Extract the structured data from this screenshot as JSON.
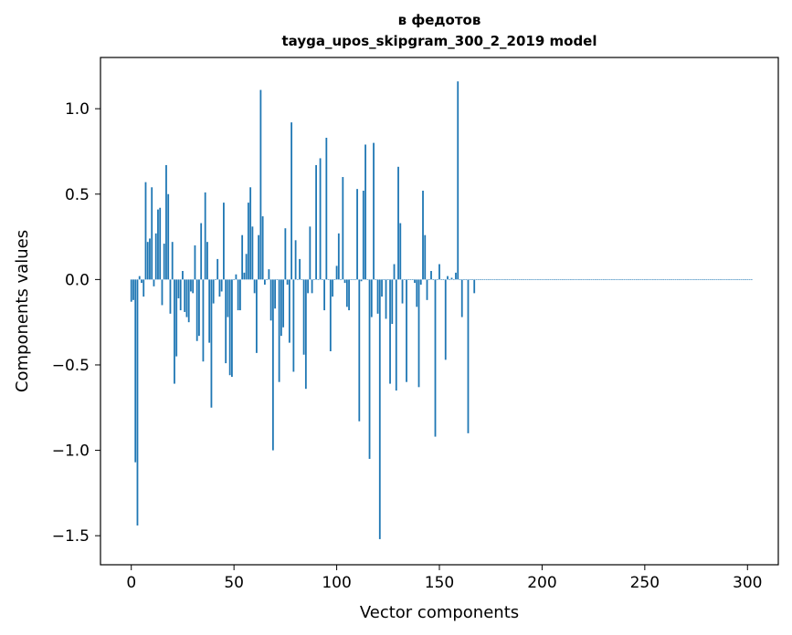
{
  "chart_data": {
    "type": "bar",
    "title": "в федотов",
    "subtitle": "tayga_upos_skipgram_300_2_2019 model",
    "xlabel": "Vector components",
    "ylabel": "Components values",
    "xlim": [
      -15,
      315
    ],
    "ylim": [
      -1.67,
      1.3
    ],
    "xticks": [
      0,
      50,
      100,
      150,
      200,
      250,
      300
    ],
    "xtick_labels": [
      "0",
      "50",
      "100",
      "150",
      "200",
      "250",
      "300"
    ],
    "yticks": [
      1.0,
      0.5,
      0.0,
      -0.5,
      -1.0,
      -1.5
    ],
    "ytick_labels": [
      "1.0",
      "0.5",
      "0.0",
      "−0.5",
      "−1.0",
      "−1.5"
    ],
    "bar_color": "#1f77b4",
    "grid": false,
    "values": [
      -0.13,
      -0.12,
      -1.07,
      -1.44,
      0.02,
      -0.02,
      -0.1,
      0.57,
      0.22,
      0.24,
      0.54,
      -0.04,
      0.27,
      0.41,
      0.42,
      -0.15,
      0.21,
      0.67,
      0.5,
      -0.2,
      0.22,
      -0.61,
      -0.45,
      -0.11,
      -0.18,
      0.05,
      -0.19,
      -0.22,
      -0.25,
      -0.07,
      -0.08,
      0.2,
      -0.36,
      -0.33,
      0.33,
      -0.48,
      0.51,
      0.22,
      -0.37,
      -0.75,
      -0.14,
      0.0,
      0.12,
      -0.1,
      -0.07,
      0.45,
      -0.49,
      -0.22,
      -0.56,
      -0.57,
      0.0,
      0.03,
      -0.18,
      -0.18,
      0.26,
      0.04,
      0.15,
      0.45,
      0.54,
      0.31,
      -0.08,
      -0.43,
      0.26,
      1.11,
      0.37,
      -0.03,
      0.0,
      0.06,
      -0.24,
      -1.0,
      -0.17,
      0.0,
      -0.6,
      -0.33,
      -0.28,
      0.3,
      -0.03,
      -0.37,
      0.92,
      -0.54,
      0.23,
      0.0,
      0.12,
      0.0,
      -0.44,
      -0.64,
      -0.08,
      0.31,
      -0.08,
      0.0,
      0.67,
      0.0,
      0.71,
      0.0,
      -0.18,
      0.83,
      0.0,
      -0.42,
      -0.1,
      0.0,
      0.08,
      0.27,
      0.0,
      0.6,
      -0.02,
      -0.16,
      -0.18,
      0.0,
      0.0,
      0.0,
      0.53,
      -0.83,
      -0.01,
      0.52,
      0.79,
      0.0,
      -1.05,
      -0.22,
      0.8,
      0.0,
      -0.2,
      -1.52,
      -0.1,
      0.0,
      -0.23,
      0.0,
      -0.61,
      -0.26,
      0.09,
      -0.65,
      0.66,
      0.33,
      -0.14,
      0.0,
      -0.6,
      0.0,
      0.0,
      0.0,
      -0.02,
      -0.16,
      -0.63,
      -0.03,
      0.52,
      0.26,
      -0.12,
      0.0,
      0.05,
      0.0,
      -0.92,
      0.0,
      0.09,
      0.0,
      0.0,
      -0.47,
      0.02,
      0.0,
      0.01,
      0.0,
      0.04,
      1.16,
      0.0,
      -0.22,
      0.0,
      0.0,
      -0.9,
      0.0,
      0.0,
      -0.08,
      0.0,
      0.0,
      0.0,
      0.0,
      0.0,
      0.0,
      0.0,
      0.0,
      0.0,
      0.0,
      0.0,
      0.0,
      0.0,
      0.0,
      0.0,
      0.0,
      0.0,
      0.0,
      0.0,
      0.0,
      0.0,
      0.0,
      0.0,
      0.0,
      0.0,
      0.0,
      0.0,
      0.0,
      0.0,
      0.0,
      0.0,
      0.0,
      0.0,
      0.0,
      0.0,
      0.0,
      0.0,
      0.0,
      0.0,
      0.0,
      0.0,
      0.0,
      0.0,
      0.0,
      0.0,
      0.0,
      0.0,
      0.0,
      0.0,
      0.0,
      0.0,
      0.0,
      0.0,
      0.0,
      0.0,
      0.0,
      0.0,
      0.0,
      0.0,
      0.0,
      0.0,
      0.0,
      0.0,
      0.0,
      0.0,
      0.0,
      0.0,
      0.0,
      0.0,
      0.0,
      0.0,
      0.0,
      0.0,
      0.0,
      0.0,
      0.0,
      0.0,
      0.0,
      0.0,
      0.0,
      0.0,
      0.0,
      0.0,
      0.0,
      0.0,
      0.0,
      0.0,
      0.0,
      0.0,
      0.0,
      0.0,
      0.0,
      0.0,
      0.0,
      0.0,
      0.0,
      0.0,
      0.0,
      0.0,
      0.0,
      0.0,
      0.0,
      0.0,
      0.0,
      0.0,
      0.0,
      0.0,
      0.0,
      0.0,
      0.0,
      0.0,
      0.0,
      0.0,
      0.0,
      0.0,
      0.0,
      0.0,
      0.0,
      0.0,
      0.0,
      0.0,
      0.0,
      0.0,
      0.0,
      0.0,
      0.0,
      0.0,
      0.0,
      0.0,
      0.0,
      0.0,
      0.0,
      0.0,
      0.0,
      0.0
    ]
  }
}
